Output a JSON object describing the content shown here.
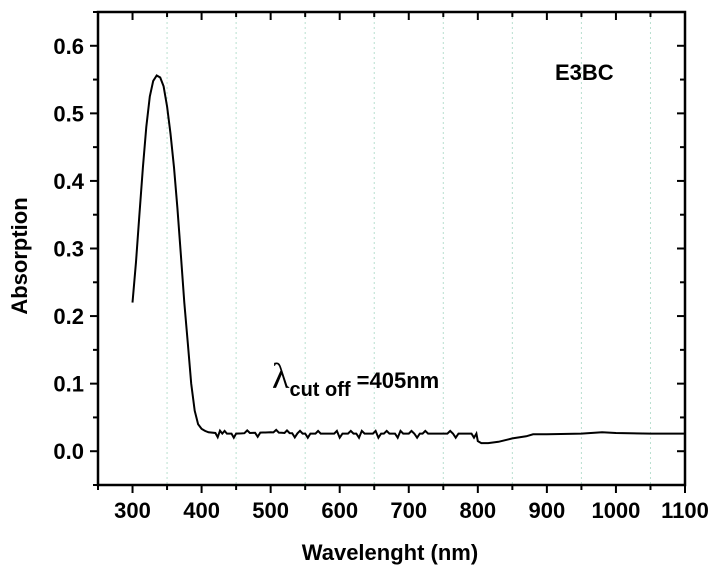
{
  "chart_data": {
    "type": "line",
    "title": "",
    "xlabel": "Wavelenght (nm)",
    "ylabel": "Absorption",
    "xlim": [
      250,
      1100
    ],
    "ylim": [
      -0.05,
      0.65
    ],
    "xticks": [
      300,
      400,
      500,
      600,
      700,
      800,
      900,
      1000,
      1100
    ],
    "yticks": [
      0.0,
      0.1,
      0.2,
      0.3,
      0.4,
      0.5,
      0.6
    ],
    "ytick_labels": [
      "0.0",
      "0.1",
      "0.2",
      "0.3",
      "0.4",
      "0.5",
      "0.6"
    ],
    "grid": "vertical dotted lines at 350, 450, 550, 650, 750, 850, 950, 1050",
    "grid_color": "#b8e0cf",
    "line_color": "#000000",
    "series": [
      {
        "name": "E3BC",
        "x": [
          300,
          305,
          310,
          315,
          320,
          325,
          330,
          335,
          340,
          345,
          350,
          355,
          360,
          365,
          370,
          375,
          380,
          385,
          390,
          395,
          400,
          405,
          410,
          420,
          430,
          440,
          450,
          470,
          500,
          520,
          550,
          580,
          620,
          660,
          700,
          740,
          780,
          798,
          800,
          805,
          815,
          830,
          850,
          870,
          880,
          900,
          950,
          980,
          1000,
          1050,
          1100
        ],
        "y": [
          0.22,
          0.28,
          0.35,
          0.42,
          0.48,
          0.525,
          0.548,
          0.556,
          0.553,
          0.54,
          0.51,
          0.47,
          0.42,
          0.36,
          0.29,
          0.22,
          0.16,
          0.1,
          0.06,
          0.04,
          0.033,
          0.03,
          0.028,
          0.027,
          0.026,
          0.026,
          0.026,
          0.027,
          0.028,
          0.027,
          0.026,
          0.026,
          0.026,
          0.026,
          0.026,
          0.026,
          0.026,
          0.026,
          0.015,
          0.012,
          0.012,
          0.014,
          0.019,
          0.022,
          0.025,
          0.025,
          0.026,
          0.028,
          0.027,
          0.026,
          0.026
        ]
      }
    ],
    "legend": {
      "text": "E3BC",
      "position": "top-right"
    },
    "annotation": {
      "symbol": "λ",
      "subscript": "cut off",
      "text": " =405nm"
    }
  }
}
